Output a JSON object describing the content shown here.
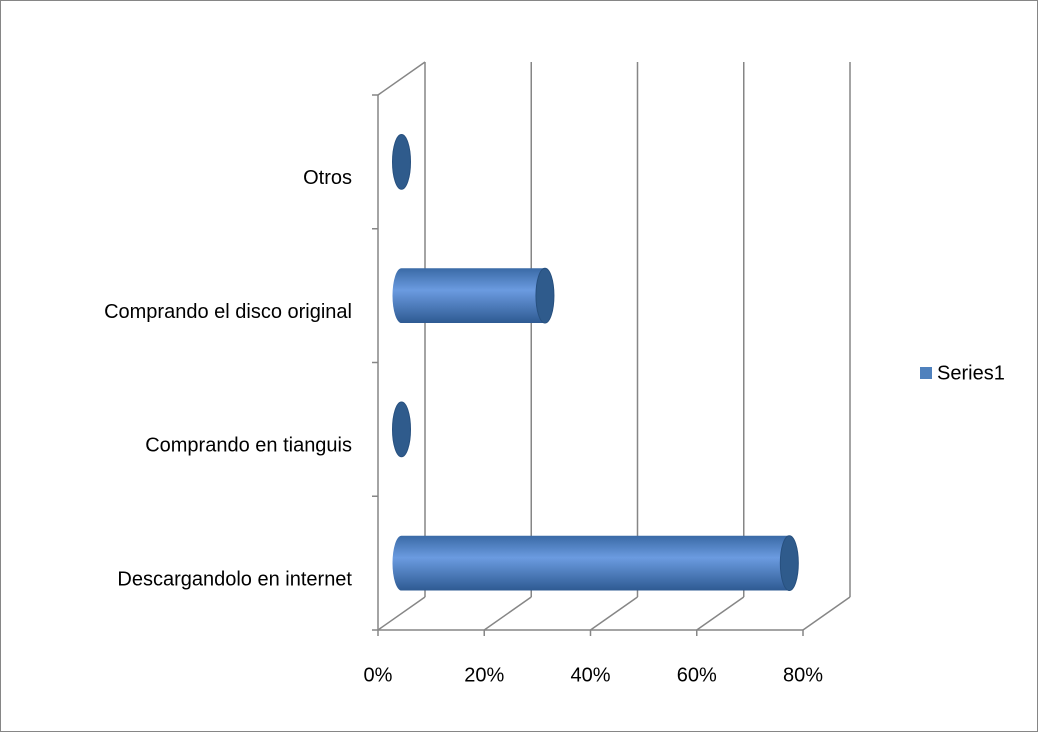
{
  "chart_data": {
    "type": "bar",
    "categories": [
      "Descargandolo en internet",
      "Comprando en tianguis",
      "Comprando el disco original",
      "Otros"
    ],
    "series": [
      {
        "name": "Series1",
        "color": "#4f81bd",
        "values": [
          73,
          0,
          27,
          0
        ]
      }
    ],
    "xlim": [
      0,
      80
    ],
    "xticks": [
      {
        "value": 0,
        "label": "0%"
      },
      {
        "value": 20,
        "label": "20%"
      },
      {
        "value": 40,
        "label": "40%"
      },
      {
        "value": 60,
        "label": "60%"
      },
      {
        "value": 80,
        "label": "80%"
      }
    ],
    "grid": true,
    "legend": "right"
  }
}
